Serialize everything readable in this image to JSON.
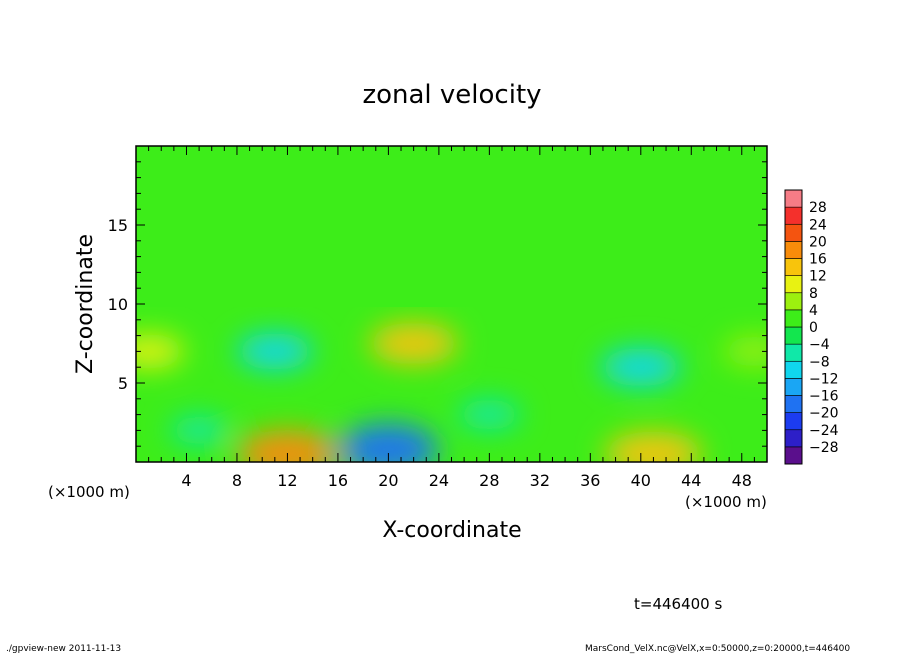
{
  "chart_data": {
    "type": "heatmap",
    "title": "zonal velocity",
    "xlabel": "X-coordinate",
    "ylabel": "Z-coordinate",
    "x_unit_note": "(×1000 m)",
    "x_unit_note_right": "(×1000 m)",
    "xlim": [
      0,
      50
    ],
    "ylim": [
      0,
      20
    ],
    "x_ticks": [
      4,
      8,
      12,
      16,
      20,
      24,
      28,
      32,
      36,
      40,
      44,
      48
    ],
    "y_ticks": [
      5,
      10,
      15
    ],
    "colorbar": {
      "levels": [
        -32,
        -28,
        -24,
        -20,
        -16,
        -12,
        -8,
        -4,
        0,
        4,
        8,
        12,
        16,
        20,
        24,
        28,
        32
      ],
      "labels": [
        28,
        24,
        20,
        16,
        12,
        8,
        4,
        0,
        -4,
        -8,
        -12,
        -16,
        -20,
        -24,
        -28
      ],
      "colors": [
        "#5a0f8c",
        "#2d1fc8",
        "#1c3cf0",
        "#1f72f2",
        "#1aa6f4",
        "#10d6ee",
        "#10e8a8",
        "#13e64e",
        "#3ded19",
        "#9cf00f",
        "#e8f212",
        "#f8c40c",
        "#f88c0a",
        "#f45410",
        "#f4302c",
        "#f67c86"
      ]
    },
    "field_features": [
      {
        "x": 22,
        "z": 7.5,
        "value": 12
      },
      {
        "x": 20,
        "z": 0.8,
        "value": -20
      },
      {
        "x": 12,
        "z": 0.5,
        "value": 16
      },
      {
        "x": 41,
        "z": 0.5,
        "value": 14
      },
      {
        "x": 40,
        "z": 6,
        "value": -10
      },
      {
        "x": 11,
        "z": 7,
        "value": -9
      },
      {
        "x": 1,
        "z": 7,
        "value": 8
      },
      {
        "x": 49,
        "z": 7,
        "value": 6
      },
      {
        "x": 28,
        "z": 3,
        "value": -6
      },
      {
        "x": 5,
        "z": 2,
        "value": -5
      }
    ]
  },
  "time_label": "t=446400 s",
  "footer_left": "./gpview-new  2011-11-13",
  "footer_right": "MarsCond_VelX.nc@VelX,x=0:50000,z=0:20000,t=446400"
}
